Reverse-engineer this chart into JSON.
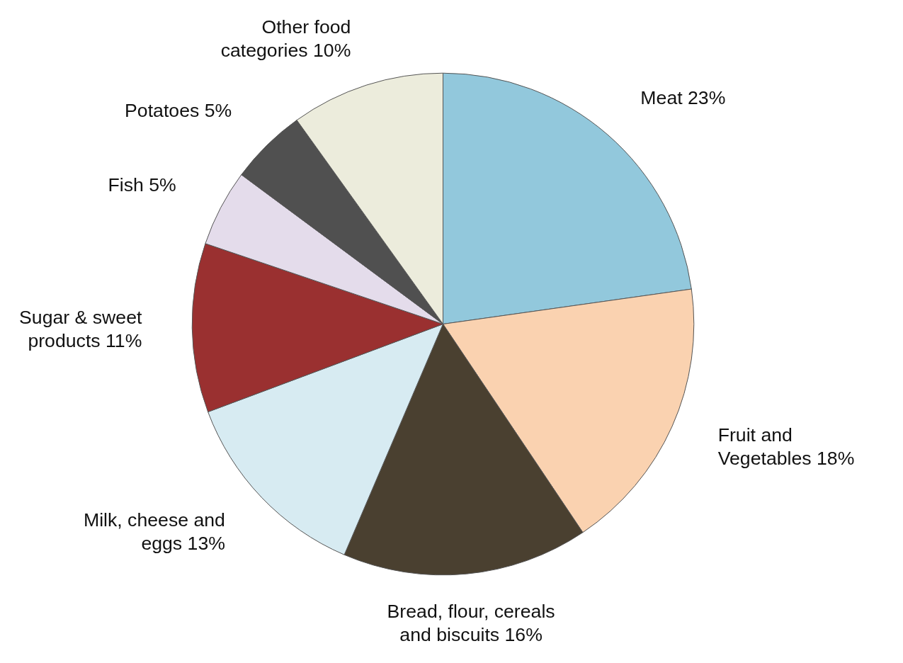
{
  "chart_data": {
    "type": "pie",
    "categories": [
      "Meat",
      "Fruit and\nVegetables",
      "Bread, flour, cereals\nand biscuits",
      "Milk, cheese and\neggs",
      "Sugar & sweet\nproducts",
      "Fish",
      "Potatoes",
      "Other food\ncategories"
    ],
    "values": [
      23,
      18,
      16,
      13,
      11,
      5,
      5,
      10
    ],
    "colors": [
      "#92c8dc",
      "#fad2b0",
      "#4a4030",
      "#d7ebf2",
      "#9a3030",
      "#e4dceb",
      "#505050",
      "#ececdc"
    ],
    "value_labels": [
      "23%",
      "18%",
      "16%",
      "13%",
      "11%",
      "5%",
      "5%",
      "10%"
    ]
  }
}
